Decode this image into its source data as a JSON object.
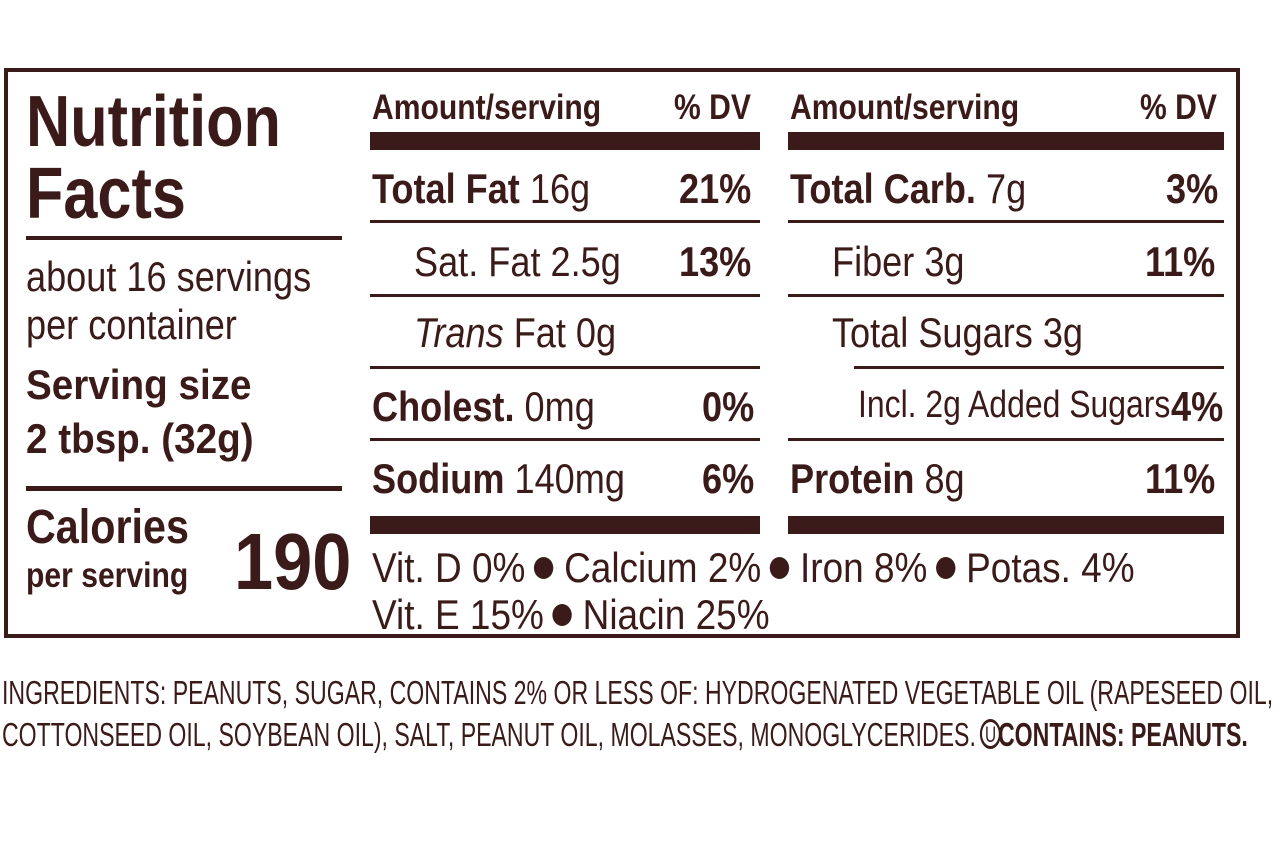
{
  "label": {
    "title_line1": "Nutrition",
    "title_line2": "Facts",
    "servings_line1": "about 16 servings",
    "servings_line2": "per container",
    "serving_size_label": "Serving size",
    "serving_size_value": "2 tbsp. (32g)",
    "calories_label": "Calories",
    "calories_sub": "per serving",
    "calories_value": "190"
  },
  "columns": {
    "left": {
      "amount_header": "Amount/serving",
      "dv_header": "% DV",
      "rows": [
        {
          "name": "Total Fat",
          "amount": "16g",
          "dv": "21%"
        },
        {
          "name": "Sat. Fat",
          "amount": "2.5g",
          "dv": "13%"
        },
        {
          "name": "Trans",
          "amount": "Fat 0g",
          "dv": ""
        },
        {
          "name": "Cholest.",
          "amount": "0mg",
          "dv": "0%"
        },
        {
          "name": "Sodium",
          "amount": "140mg",
          "dv": "6%"
        }
      ]
    },
    "right": {
      "amount_header": "Amount/serving",
      "dv_header": "% DV",
      "rows": [
        {
          "name": "Total Carb.",
          "amount": "7g",
          "dv": "3%"
        },
        {
          "name": "Fiber",
          "amount": "3g",
          "dv": "11%"
        },
        {
          "name": "Total Sugars",
          "amount": "3g",
          "dv": ""
        },
        {
          "name": "Incl. 2g Added Sugars",
          "amount": "",
          "dv": "4%"
        },
        {
          "name": "Protein",
          "amount": "8g",
          "dv": "11%"
        }
      ]
    }
  },
  "vitamins": {
    "line1": [
      "Vit. D 0%",
      "Calcium 2%",
      "Iron 8%",
      "Potas. 4%"
    ],
    "line2": [
      "Vit. E 15%",
      "Niacin 25%"
    ]
  },
  "ingredients": {
    "line1": "INGREDIENTS: PEANUTS, SUGAR, CONTAINS 2% OR LESS OF: HYDROGENATED VEGETABLE OIL (RAPESEED OIL,",
    "line2": "COTTONSEED OIL, SOYBEAN OIL), SALT, PEANUT OIL, MOLASSES, MONOGLYCERIDES.",
    "kosher_mark": "U",
    "contains": "CONTAINS: PEANUTS."
  },
  "colors": {
    "ink": "#3b1a1a",
    "background": "#ffffff"
  }
}
